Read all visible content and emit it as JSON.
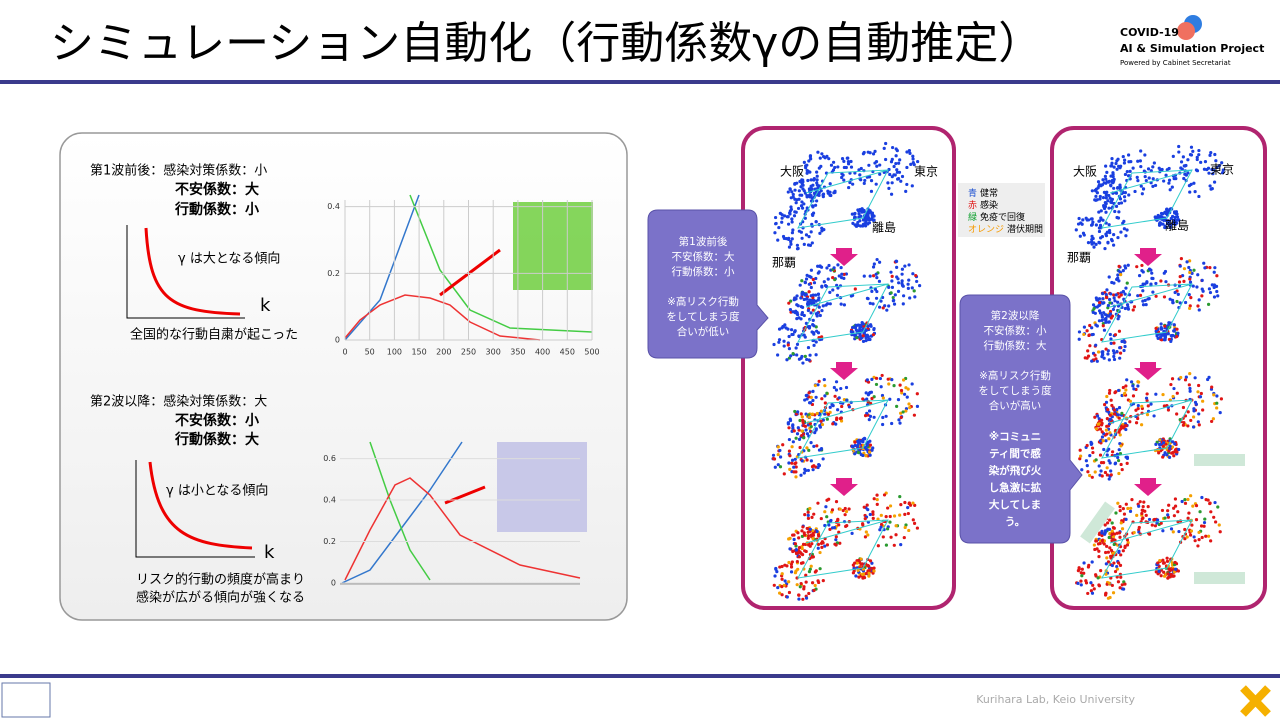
{
  "header": {
    "title": "シミュレーション自動化（行動係数γの自動推定）",
    "logo": [
      "COVID-19",
      "AI & Simulation Project",
      "Powered by Cabinet Secretariat"
    ]
  },
  "left": {
    "wave1": {
      "heading": "第1波前後：感染対策係数：小",
      "lines": [
        "不安係数：大",
        "行動係数：小"
      ],
      "gamma_note": "γ  は大となる傾向",
      "axis": "k",
      "caption": [
        "全国的な行動自粛が起こった"
      ]
    },
    "wave2": {
      "heading": "第2波以降：感染対策係数：大",
      "lines": [
        "不安係数：小",
        "行動係数：大"
      ],
      "gamma_note": "γ  は小となる傾向",
      "axis": "k",
      "caption": [
        "リスク的行動の頻度が高まり",
        "感染が広がる傾向が強くなる"
      ]
    },
    "chart1": {
      "xlim": [
        0,
        500
      ],
      "ylim": [
        0,
        0.42
      ],
      "xticks": [
        0,
        50,
        100,
        150,
        200,
        250,
        300,
        350,
        400,
        450,
        500
      ],
      "yticks": [
        0,
        0.2,
        0.4
      ]
    },
    "chart2": {
      "ylim": [
        0,
        0.68
      ],
      "yticks": [
        0,
        0.2,
        0.4,
        0.6
      ]
    }
  },
  "right": {
    "map_labels": [
      "大阪",
      "東京",
      "離島",
      "那覇"
    ],
    "legend": [
      {
        "color": "青",
        "label": "健常"
      },
      {
        "color": "赤",
        "label": "感染"
      },
      {
        "color": "緑",
        "label": "免疫で回復"
      },
      {
        "color": "オレンジ",
        "label": "潜伏期間"
      }
    ],
    "callout1": [
      "第1波前後",
      "不安係数：大",
      "行動係数：小",
      "",
      "※高リスク行動",
      "をしてしまう度",
      "合いが低い"
    ],
    "callout2": [
      "第2波以降",
      "不安係数：小",
      "行動係数：大",
      "",
      "※高リスク行動",
      "をしてしまう度",
      "合いが高い"
    ],
    "callout2_bold": [
      "※コミュニ",
      "ティ間で感",
      "染が飛び火",
      "し急激に拡",
      "大してしま",
      "う。"
    ]
  },
  "footer": {
    "credit": "Kurihara Lab, Keio University"
  }
}
